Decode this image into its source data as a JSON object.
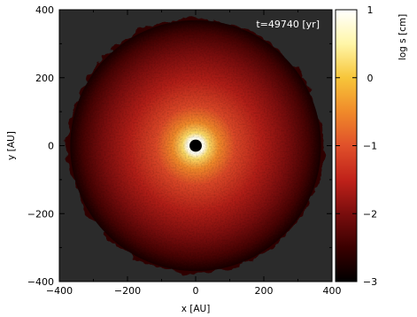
{
  "chart_data": {
    "type": "heatmap",
    "title": "",
    "annotation": "t=49740 [yr]",
    "xlabel": "x [AU]",
    "ylabel": "y [AU]",
    "xlim": [
      -400,
      400
    ],
    "ylim": [
      -400,
      400
    ],
    "xticks": [
      -400,
      -200,
      0,
      200,
      400
    ],
    "yticks": [
      -400,
      -200,
      0,
      200,
      400
    ],
    "x_tick_labels": [
      "−400",
      "−200",
      "0",
      "200",
      "400"
    ],
    "y_tick_labels": [
      "−400",
      "−200",
      "0",
      "200",
      "400"
    ],
    "background_color": "#2b2b2b",
    "colorbar": {
      "label": "log s [cm]",
      "range": [
        -3,
        1
      ],
      "ticks": [
        1,
        0,
        -1,
        -2,
        -3
      ],
      "tick_labels": [
        "1",
        "0",
        "−1",
        "−2",
        "−3"
      ],
      "colormap": [
        "#000000",
        "#3a0000",
        "#7a0d0d",
        "#c0221a",
        "#e0502a",
        "#f08a2a",
        "#f7c63a",
        "#fff6a8",
        "#ffffff"
      ]
    },
    "disk": {
      "inner_hole_radius": 18,
      "outer_radius": 380,
      "radial_profile": [
        {
          "r": 25,
          "log_s": 0.9
        },
        {
          "r": 40,
          "log_s": 0.2
        },
        {
          "r": 70,
          "log_s": -0.5
        },
        {
          "r": 120,
          "log_s": -1.1
        },
        {
          "r": 200,
          "log_s": -1.6
        },
        {
          "r": 280,
          "log_s": -2.0
        },
        {
          "r": 340,
          "log_s": -2.4
        },
        {
          "r": 380,
          "log_s": -2.8
        }
      ]
    }
  }
}
